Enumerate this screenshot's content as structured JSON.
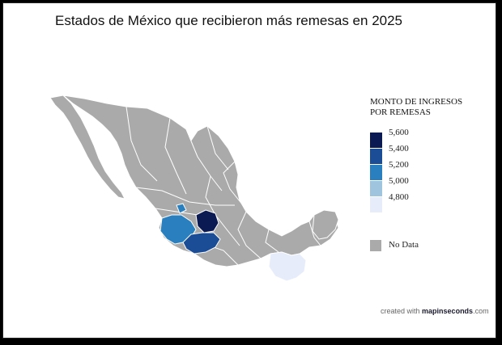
{
  "title": "Estados de México que recibieron más remesas en 2025",
  "legend": {
    "title_line1": "MONTO DE INGRESOS",
    "title_line2": "POR REMESAS",
    "scale": [
      {
        "value": "5,600",
        "color": "#0b1a52"
      },
      {
        "value": "5,400",
        "color": "#1b4c96"
      },
      {
        "value": "5,200",
        "color": "#2a7fbf"
      },
      {
        "value": "5,000",
        "color": "#9fc4dd"
      },
      {
        "value": "4,800",
        "color": "#e6ecfa"
      }
    ],
    "no_data_label": "No Data",
    "no_data_color": "#aaaaaa"
  },
  "credit": {
    "prefix": "created with",
    "brand": "mapinseconds",
    "suffix": ".com"
  },
  "map_data": {
    "type": "choropleth",
    "regions": [
      {
        "name": "Guanajuato",
        "color": "#0b1a52"
      },
      {
        "name": "Michoacán",
        "color": "#1b4c96"
      },
      {
        "name": "Jalisco",
        "color": "#2a7fbf"
      },
      {
        "name": "Oaxaca/Chiapas",
        "color": "#e6ecfa"
      }
    ],
    "base_color": "#aaaaaa",
    "border_color": "#ffffff"
  }
}
